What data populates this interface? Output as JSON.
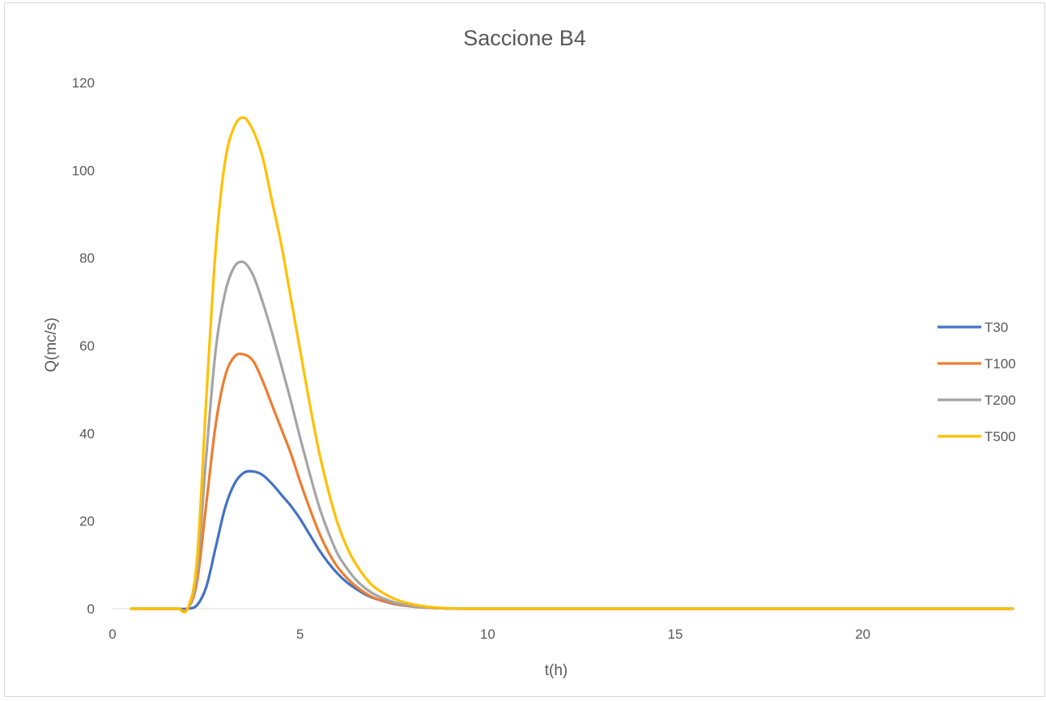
{
  "chart_data": {
    "type": "line",
    "title": "Saccione B4",
    "xlabel": "t(h)",
    "ylabel": "Q(mc/s)",
    "xlim": [
      0,
      24
    ],
    "ylim": [
      0,
      120
    ],
    "x_ticks": [
      0,
      5,
      10,
      15,
      20
    ],
    "y_ticks": [
      0,
      20,
      40,
      60,
      80,
      100,
      120
    ],
    "grid": false,
    "legend_position": "right",
    "x": [
      0.5,
      1.0,
      1.5,
      1.75,
      2.0,
      2.25,
      2.5,
      2.75,
      3.0,
      3.25,
      3.5,
      3.75,
      4.0,
      4.25,
      4.5,
      4.75,
      5.0,
      5.25,
      5.5,
      5.75,
      6.0,
      6.25,
      6.5,
      6.75,
      7.0,
      7.5,
      8.0,
      8.5,
      9.0,
      9.5,
      10,
      11,
      12,
      13,
      14,
      15,
      16,
      17,
      18,
      19,
      20,
      21,
      22,
      23,
      24
    ],
    "series": [
      {
        "name": "T30",
        "color": "#4472c4",
        "values": [
          0,
          0,
          0,
          0,
          0,
          0.8,
          5,
          14,
          23,
          28.5,
          31,
          31.3,
          30.5,
          28.5,
          26,
          23.5,
          20.5,
          17,
          13.5,
          10.5,
          8,
          6,
          4.5,
          3.2,
          2.3,
          1.1,
          0.5,
          0.2,
          0.05,
          0,
          0,
          0,
          0,
          0,
          0,
          0,
          0,
          0,
          0,
          0,
          0,
          0,
          0,
          0,
          0
        ]
      },
      {
        "name": "T100",
        "color": "#ed7d31",
        "values": [
          0,
          0,
          0,
          0,
          0,
          6,
          24,
          42,
          53,
          57.5,
          58,
          56.5,
          52,
          46.5,
          41,
          35.5,
          29,
          23,
          17.5,
          13,
          9.5,
          7,
          5,
          3.5,
          2.4,
          1.2,
          0.5,
          0.2,
          0.05,
          0,
          0,
          0,
          0,
          0,
          0,
          0,
          0,
          0,
          0,
          0,
          0,
          0,
          0,
          0,
          0
        ]
      },
      {
        "name": "T200",
        "color": "#a5a5a5",
        "values": [
          0,
          0,
          0,
          0,
          0,
          8,
          35,
          59,
          72,
          78,
          79,
          76,
          70,
          63,
          55.5,
          47.5,
          39,
          31,
          23.5,
          17.5,
          12.5,
          9.2,
          6.5,
          4.6,
          3.2,
          1.5,
          0.6,
          0.25,
          0.05,
          0,
          0,
          0,
          0,
          0,
          0,
          0,
          0,
          0,
          0,
          0,
          0,
          0,
          0,
          0,
          0
        ]
      },
      {
        "name": "T500",
        "color": "#ffc000",
        "values": [
          0,
          0,
          0,
          0,
          0,
          11,
          48,
          82,
          102,
          110,
          112,
          109,
          103,
          93,
          83,
          71,
          59,
          47,
          36,
          27,
          19.5,
          14,
          10,
          7,
          4.8,
          2.3,
          1,
          0.35,
          0.1,
          0,
          0,
          0,
          0,
          0,
          0,
          0,
          0,
          0,
          0,
          0,
          0,
          0,
          0,
          0,
          0
        ]
      }
    ]
  }
}
